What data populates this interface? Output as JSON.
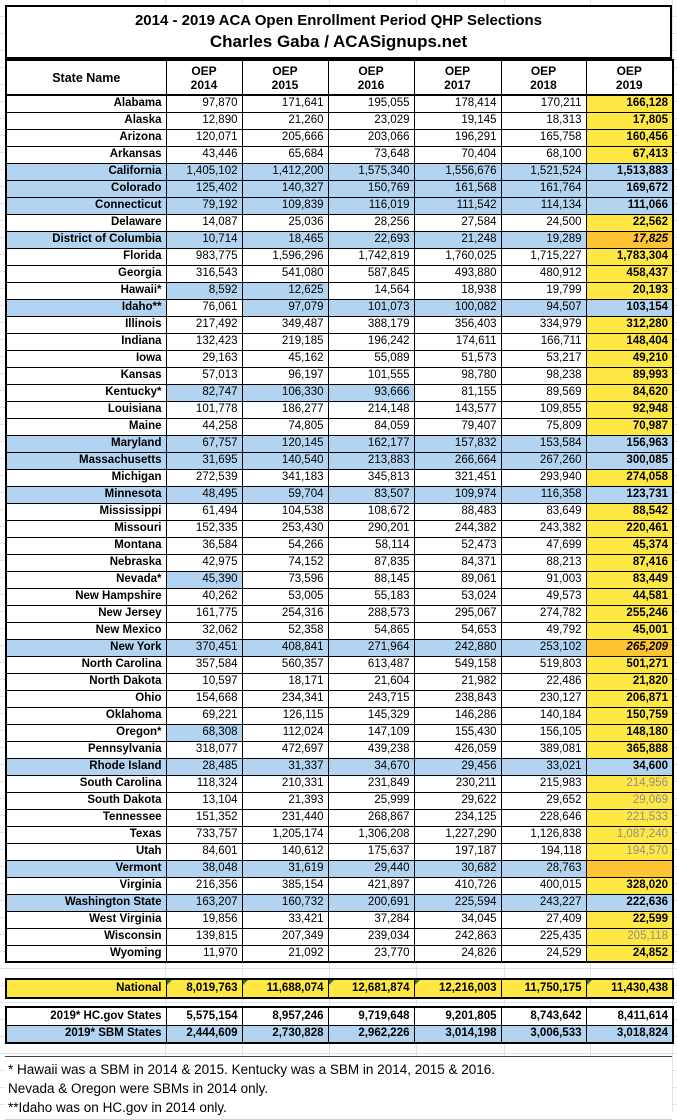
{
  "title": {
    "line1": "2014 - 2019 ACA Open Enrollment Period QHP Selections",
    "line2": "Charles Gaba / ACASignups.net"
  },
  "header": {
    "state_col": "State Name",
    "oep_label": "OEP",
    "years": [
      "2014",
      "2015",
      "2016",
      "2017",
      "2018",
      "2019"
    ]
  },
  "colors": {
    "yellow": "#FFE843",
    "blue": "#B3D4F1",
    "orange": "#FFC433",
    "gray_text": "#8F8F8F",
    "green_triangle": "#2F7D27"
  },
  "chart_data": {
    "type": "table",
    "columns": [
      "State Name",
      "OEP 2014",
      "OEP 2015",
      "OEP 2016",
      "OEP 2017",
      "OEP 2018",
      "OEP 2019"
    ],
    "rows": [
      {
        "state": "Alabama",
        "values": [
          "97,870",
          "171,641",
          "195,055",
          "178,414",
          "170,211",
          "166,128"
        ],
        "y2019": "yellow"
      },
      {
        "state": "Alaska",
        "values": [
          "12,890",
          "21,260",
          "23,029",
          "19,145",
          "18,313",
          "17,805"
        ],
        "y2019": "yellow"
      },
      {
        "state": "Arizona",
        "values": [
          "120,071",
          "205,666",
          "203,066",
          "196,291",
          "165,758",
          "160,456"
        ],
        "y2019": "yellow"
      },
      {
        "state": "Arkansas",
        "values": [
          "43,446",
          "65,684",
          "73,648",
          "70,404",
          "68,100",
          "67,413"
        ],
        "y2019": "yellow"
      },
      {
        "state": "California",
        "values": [
          "1,405,102",
          "1,412,200",
          "1,575,340",
          "1,556,676",
          "1,521,524",
          "1,513,883"
        ],
        "sbm": true,
        "y2019": "blue"
      },
      {
        "state": "Colorado",
        "values": [
          "125,402",
          "140,327",
          "150,769",
          "161,568",
          "161,764",
          "169,672"
        ],
        "sbm": true,
        "y2019": "blue"
      },
      {
        "state": "Connecticut",
        "values": [
          "79,192",
          "109,839",
          "116,019",
          "111,542",
          "114,134",
          "111,066"
        ],
        "sbm": true,
        "y2019": "blue"
      },
      {
        "state": "Delaware",
        "values": [
          "14,087",
          "25,036",
          "28,256",
          "27,584",
          "24,500",
          "22,562"
        ],
        "y2019": "yellow"
      },
      {
        "state": "District of Columbia",
        "values": [
          "10,714",
          "18,465",
          "22,693",
          "21,248",
          "19,289",
          "17,825"
        ],
        "sbm": true,
        "y2019": "orange"
      },
      {
        "state": "Florida",
        "values": [
          "983,775",
          "1,596,296",
          "1,742,819",
          "1,760,025",
          "1,715,227",
          "1,783,304"
        ],
        "y2019": "yellow"
      },
      {
        "state": "Georgia",
        "values": [
          "316,543",
          "541,080",
          "587,845",
          "493,880",
          "480,912",
          "458,437"
        ],
        "y2019": "yellow"
      },
      {
        "state": "Hawaii*",
        "values": [
          "8,592",
          "12,625",
          "14,564",
          "18,938",
          "19,799",
          "20,193"
        ],
        "blue_cols": [
          0,
          1
        ],
        "y2019": "yellow"
      },
      {
        "state": "Idaho**",
        "values": [
          "76,061",
          "97,079",
          "101,073",
          "100,082",
          "94,507",
          "103,154"
        ],
        "label_blue": true,
        "blue_cols": [
          1,
          2,
          3,
          4
        ],
        "y2019": "blue"
      },
      {
        "state": "Illinois",
        "values": [
          "217,492",
          "349,487",
          "388,179",
          "356,403",
          "334,979",
          "312,280"
        ],
        "y2019": "yellow"
      },
      {
        "state": "Indiana",
        "values": [
          "132,423",
          "219,185",
          "196,242",
          "174,611",
          "166,711",
          "148,404"
        ],
        "y2019": "yellow"
      },
      {
        "state": "Iowa",
        "values": [
          "29,163",
          "45,162",
          "55,089",
          "51,573",
          "53,217",
          "49,210"
        ],
        "y2019": "yellow"
      },
      {
        "state": "Kansas",
        "values": [
          "57,013",
          "96,197",
          "101,555",
          "98,780",
          "98,238",
          "89,993"
        ],
        "y2019": "yellow"
      },
      {
        "state": "Kentucky*",
        "values": [
          "82,747",
          "106,330",
          "93,666",
          "81,155",
          "89,569",
          "84,620"
        ],
        "blue_cols": [
          0,
          1,
          2
        ],
        "y2019": "yellow"
      },
      {
        "state": "Louisiana",
        "values": [
          "101,778",
          "186,277",
          "214,148",
          "143,577",
          "109,855",
          "92,948"
        ],
        "y2019": "yellow"
      },
      {
        "state": "Maine",
        "values": [
          "44,258",
          "74,805",
          "84,059",
          "79,407",
          "75,809",
          "70,987"
        ],
        "y2019": "yellow"
      },
      {
        "state": "Maryland",
        "values": [
          "67,757",
          "120,145",
          "162,177",
          "157,832",
          "153,584",
          "156,963"
        ],
        "sbm": true,
        "y2019": "blue"
      },
      {
        "state": "Massachusetts",
        "values": [
          "31,695",
          "140,540",
          "213,883",
          "266,664",
          "267,260",
          "300,085"
        ],
        "sbm": true,
        "y2019": "blue"
      },
      {
        "state": "Michigan",
        "values": [
          "272,539",
          "341,183",
          "345,813",
          "321,451",
          "293,940",
          "274,058"
        ],
        "y2019": "yellow"
      },
      {
        "state": "Minnesota",
        "values": [
          "48,495",
          "59,704",
          "83,507",
          "109,974",
          "116,358",
          "123,731"
        ],
        "sbm": true,
        "y2019": "blue"
      },
      {
        "state": "Mississippi",
        "values": [
          "61,494",
          "104,538",
          "108,672",
          "88,483",
          "83,649",
          "88,542"
        ],
        "y2019": "yellow"
      },
      {
        "state": "Missouri",
        "values": [
          "152,335",
          "253,430",
          "290,201",
          "244,382",
          "243,382",
          "220,461"
        ],
        "y2019": "yellow"
      },
      {
        "state": "Montana",
        "values": [
          "36,584",
          "54,266",
          "58,114",
          "52,473",
          "47,699",
          "45,374"
        ],
        "y2019": "yellow"
      },
      {
        "state": "Nebraska",
        "values": [
          "42,975",
          "74,152",
          "87,835",
          "84,371",
          "88,213",
          "87,416"
        ],
        "y2019": "yellow"
      },
      {
        "state": "Nevada*",
        "values": [
          "45,390",
          "73,596",
          "88,145",
          "89,061",
          "91,003",
          "83,449"
        ],
        "blue_cols": [
          0
        ],
        "y2019": "yellow"
      },
      {
        "state": "New Hampshire",
        "values": [
          "40,262",
          "53,005",
          "55,183",
          "53,024",
          "49,573",
          "44,581"
        ],
        "y2019": "yellow"
      },
      {
        "state": "New Jersey",
        "values": [
          "161,775",
          "254,316",
          "288,573",
          "295,067",
          "274,782",
          "255,246"
        ],
        "y2019": "yellow"
      },
      {
        "state": "New Mexico",
        "values": [
          "32,062",
          "52,358",
          "54,865",
          "54,653",
          "49,792",
          "45,001"
        ],
        "y2019": "yellow"
      },
      {
        "state": "New York",
        "values": [
          "370,451",
          "408,841",
          "271,964",
          "242,880",
          "253,102",
          "265,209"
        ],
        "sbm": true,
        "y2019": "orange"
      },
      {
        "state": "North Carolina",
        "values": [
          "357,584",
          "560,357",
          "613,487",
          "549,158",
          "519,803",
          "501,271"
        ],
        "y2019": "yellow"
      },
      {
        "state": "North Dakota",
        "values": [
          "10,597",
          "18,171",
          "21,604",
          "21,982",
          "22,486",
          "21,820"
        ],
        "y2019": "yellow"
      },
      {
        "state": "Ohio",
        "values": [
          "154,668",
          "234,341",
          "243,715",
          "238,843",
          "230,127",
          "206,871"
        ],
        "y2019": "yellow"
      },
      {
        "state": "Oklahoma",
        "values": [
          "69,221",
          "126,115",
          "145,329",
          "146,286",
          "140,184",
          "150,759"
        ],
        "y2019": "yellow"
      },
      {
        "state": "Oregon*",
        "values": [
          "68,308",
          "112,024",
          "147,109",
          "155,430",
          "156,105",
          "148,180"
        ],
        "blue_cols": [
          0
        ],
        "y2019": "yellow"
      },
      {
        "state": "Pennsylvania",
        "values": [
          "318,077",
          "472,697",
          "439,238",
          "426,059",
          "389,081",
          "365,888"
        ],
        "y2019": "yellow"
      },
      {
        "state": "Rhode Island",
        "values": [
          "28,485",
          "31,337",
          "34,670",
          "29,456",
          "33,021",
          "34,600"
        ],
        "sbm": true,
        "y2019": "blue"
      },
      {
        "state": "South Carolina",
        "values": [
          "118,324",
          "210,331",
          "231,849",
          "230,211",
          "215,983",
          "214,956"
        ],
        "y2019": "gray"
      },
      {
        "state": "South Dakota",
        "values": [
          "13,104",
          "21,393",
          "25,999",
          "29,622",
          "29,652",
          "29,069"
        ],
        "y2019": "gray"
      },
      {
        "state": "Tennessee",
        "values": [
          "151,352",
          "231,440",
          "268,867",
          "234,125",
          "228,646",
          "221,533"
        ],
        "y2019": "gray"
      },
      {
        "state": "Texas",
        "values": [
          "733,757",
          "1,205,174",
          "1,306,208",
          "1,227,290",
          "1,126,838",
          "1,087,240"
        ],
        "y2019": "gray"
      },
      {
        "state": "Utah",
        "values": [
          "84,601",
          "140,612",
          "175,637",
          "197,187",
          "194,118",
          "194,570"
        ],
        "y2019": "gray"
      },
      {
        "state": "Vermont",
        "values": [
          "38,048",
          "31,619",
          "29,440",
          "30,682",
          "28,763",
          ""
        ],
        "sbm": true,
        "y2019": "orange-empty"
      },
      {
        "state": "Virginia",
        "values": [
          "216,356",
          "385,154",
          "421,897",
          "410,726",
          "400,015",
          "328,020"
        ],
        "y2019": "yellow"
      },
      {
        "state": "Washington State",
        "values": [
          "163,207",
          "160,732",
          "200,691",
          "225,594",
          "243,227",
          "222,636"
        ],
        "sbm": true,
        "y2019": "blue"
      },
      {
        "state": "West Virginia",
        "values": [
          "19,856",
          "33,421",
          "37,284",
          "34,045",
          "27,409",
          "22,599"
        ],
        "y2019": "yellow"
      },
      {
        "state": "Wisconsin",
        "values": [
          "139,815",
          "207,349",
          "239,034",
          "242,863",
          "225,435",
          "205,118"
        ],
        "y2019": "gray"
      },
      {
        "state": "Wyoming",
        "values": [
          "11,970",
          "21,092",
          "23,770",
          "24,826",
          "24,529",
          "24,852"
        ],
        "y2019": "yellow"
      }
    ],
    "totals": {
      "national": {
        "label": "National",
        "values": [
          "8,019,763",
          "11,688,074",
          "12,681,874",
          "12,216,003",
          "11,750,175",
          "11,430,438"
        ],
        "comment_flags": [
          true,
          true,
          true,
          true,
          false,
          true
        ]
      },
      "hcgov": {
        "label": "2019* HC.gov States",
        "values": [
          "5,575,154",
          "8,957,246",
          "9,719,648",
          "9,201,805",
          "8,743,642",
          "8,411,614"
        ]
      },
      "sbm": {
        "label": "2019* SBM States",
        "values": [
          "2,444,609",
          "2,730,828",
          "2,962,226",
          "3,014,198",
          "3,006,533",
          "3,018,824"
        ]
      }
    }
  },
  "footnotes": [
    "* Hawaii was a SBM in 2014 & 2015. Kentucky was a SBM in 2014, 2015 & 2016.",
    "Nevada & Oregon were SBMs in 2014 only.",
    "**Idaho was on HC.gov in 2014 only."
  ]
}
